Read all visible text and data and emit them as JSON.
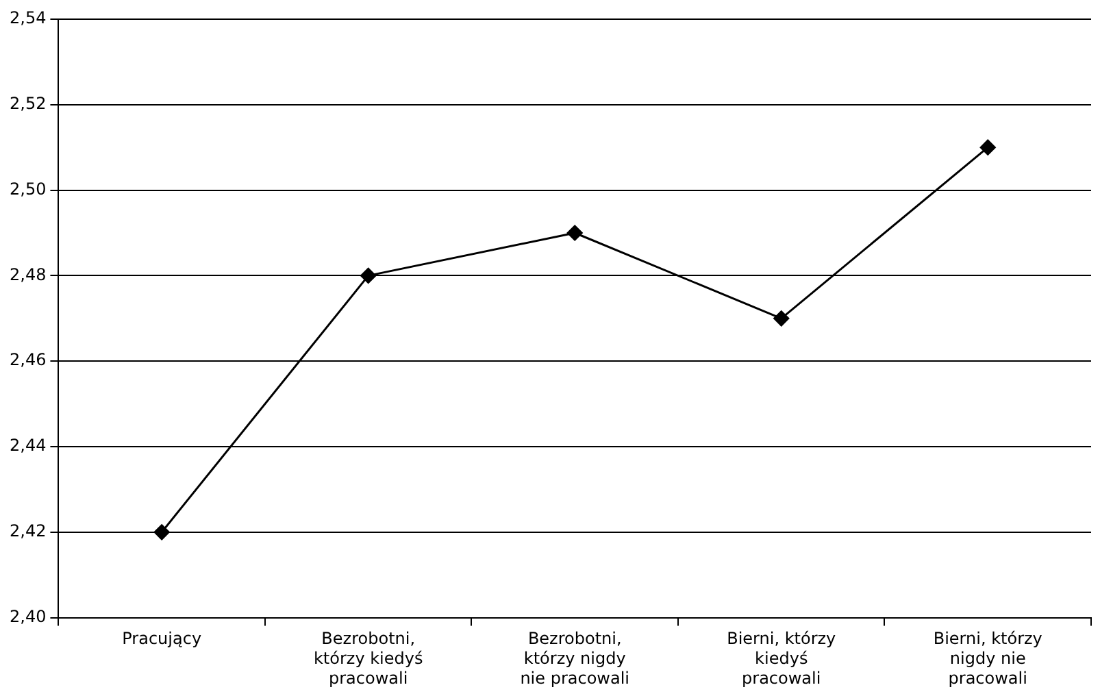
{
  "chart_data": {
    "type": "line",
    "categories": [
      "Pracujący",
      "Bezrobotni, którzy kiedyś pracowali",
      "Bezrobotni, którzy nigdy nie pracowali",
      "Bierni, którzy kiedyś pracowali",
      "Bierni, którzy nigdy nie pracowali"
    ],
    "series": [
      {
        "color": "#000000",
        "values": [
          2.42,
          2.48,
          2.49,
          2.47,
          2.51
        ]
      }
    ],
    "ylim": [
      2.4,
      2.54
    ],
    "yticks": [
      {
        "value": 2.4,
        "label": "2,40"
      },
      {
        "value": 2.42,
        "label": "2,42"
      },
      {
        "value": 2.44,
        "label": "2,44"
      },
      {
        "value": 2.46,
        "label": "2,46"
      },
      {
        "value": 2.48,
        "label": "2,48"
      },
      {
        "value": 2.5,
        "label": "2,50"
      },
      {
        "value": 2.52,
        "label": "2,52"
      },
      {
        "value": 2.54,
        "label": "2,54"
      }
    ],
    "grid": "y",
    "legend": false,
    "marker": "diamond",
    "line_style": "solid"
  }
}
